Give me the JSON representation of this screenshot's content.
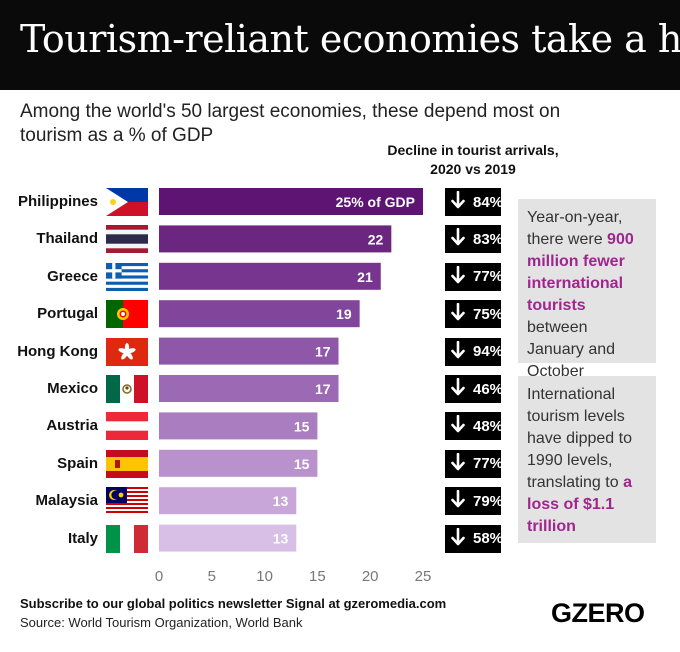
{
  "title": "Tourism-reliant economies take a hit",
  "subtitle": "Among the world's 50 largest economies, these depend most on tourism as a % of GDP",
  "decline_header": "Decline in tourist arrivals, 2020 vs 2019",
  "chart_data": {
    "type": "bar",
    "orientation": "horizontal",
    "categories": [
      "Philippines",
      "Thailand",
      "Greece",
      "Portugal",
      "Hong Kong",
      "Mexico",
      "Austria",
      "Spain",
      "Malaysia",
      "Italy"
    ],
    "values": [
      25,
      22,
      21,
      19,
      17,
      17,
      15,
      15,
      13,
      13
    ],
    "data_labels": [
      "25% of GDP",
      "22",
      "21",
      "19",
      "17",
      "17",
      "15",
      "15",
      "13",
      "13"
    ],
    "xlim": [
      0,
      25
    ],
    "xticks": [
      "0",
      "5",
      "10",
      "15",
      "20",
      "25"
    ],
    "grid": false,
    "decline_values": [
      "84%",
      "83%",
      "77%",
      "75%",
      "94%",
      "46%",
      "48%",
      "77%",
      "79%",
      "58%"
    ],
    "bar_colors": [
      "#5e1472",
      "#6b2680",
      "#773590",
      "#82459c",
      "#8e57a8",
      "#9c69b4",
      "#aa7dc0",
      "#b891cd",
      "#c8a6d9",
      "#d8bfe5"
    ],
    "flag_icons": [
      "flag-philippines-icon",
      "flag-thailand-icon",
      "flag-greece-icon",
      "flag-portugal-icon",
      "flag-hong-kong-icon",
      "flag-mexico-icon",
      "flag-austria-icon",
      "flag-spain-icon",
      "flag-malaysia-icon",
      "flag-italy-icon"
    ]
  },
  "notes": [
    {
      "parts": [
        "Year-on-year, there were ",
        "900 million fewer international tourists",
        " between January and October"
      ]
    },
    {
      "parts": [
        "International tourism levels have dipped to 1990 levels, translating to ",
        "a loss of $1.1 trillion",
        ""
      ]
    }
  ],
  "highlight_color": "#a0268f",
  "footer": {
    "subscribe": "Subscribe to our global politics newsletter Signal at gzeromedia.com",
    "source": "Source: World Tourism Organization, World Bank"
  },
  "logo": "GZERO"
}
